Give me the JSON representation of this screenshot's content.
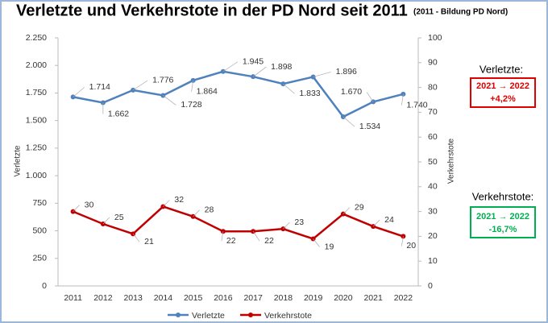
{
  "chart_data": {
    "type": "line",
    "title": "Verletzte und Verkehrstote in der PD Nord seit 2011",
    "subtitle": "(2011 - Bildung PD Nord)",
    "y_label": "Verletzte",
    "y2_label": "Verkehrstote",
    "categories": [
      "2011",
      "2012",
      "2013",
      "2014",
      "2015",
      "2016",
      "2017",
      "2018",
      "2019",
      "2020",
      "2021",
      "2022"
    ],
    "series": [
      {
        "name": "Verletzte",
        "color": "#4f81bd",
        "values": [
          1714,
          1662,
          1776,
          1728,
          1864,
          1945,
          1898,
          1833,
          1896,
          1534,
          1670,
          1740
        ],
        "value_labels": [
          "1.714",
          "1.662",
          "1.776",
          "1.728",
          "1.864",
          "1.945",
          "1.898",
          "1.833",
          "1.896",
          "1.534",
          "1.670",
          "1.740"
        ]
      },
      {
        "name": "Verkehrstote",
        "color": "#c00000",
        "axis": "y2",
        "values": [
          30,
          25,
          21,
          32,
          28,
          22,
          22,
          23,
          19,
          29,
          24,
          20
        ]
      }
    ],
    "ylim": [
      0,
      2250
    ],
    "yticks": [
      0,
      250,
      500,
      750,
      {
        "value": 1000,
        "label": "1.000"
      },
      {
        "value": 1250,
        "label": "1.250"
      },
      {
        "value": 1500,
        "label": "1.500"
      },
      {
        "value": 1750,
        "label": "1.750"
      },
      {
        "value": 2000,
        "label": "2.000"
      },
      {
        "value": 2250,
        "label": "2.250"
      }
    ],
    "y2lim": [
      0,
      100
    ],
    "y2ticks": [
      0,
      10,
      20,
      30,
      40,
      50,
      60,
      70,
      80,
      90,
      100
    ],
    "grid": false,
    "legend": "bottom",
    "annotations": [
      "Verletzte:",
      "2021 → 2022",
      "+4,2%",
      "Verkehrstote:",
      "2021 → 2022",
      "-16,7%"
    ]
  }
}
